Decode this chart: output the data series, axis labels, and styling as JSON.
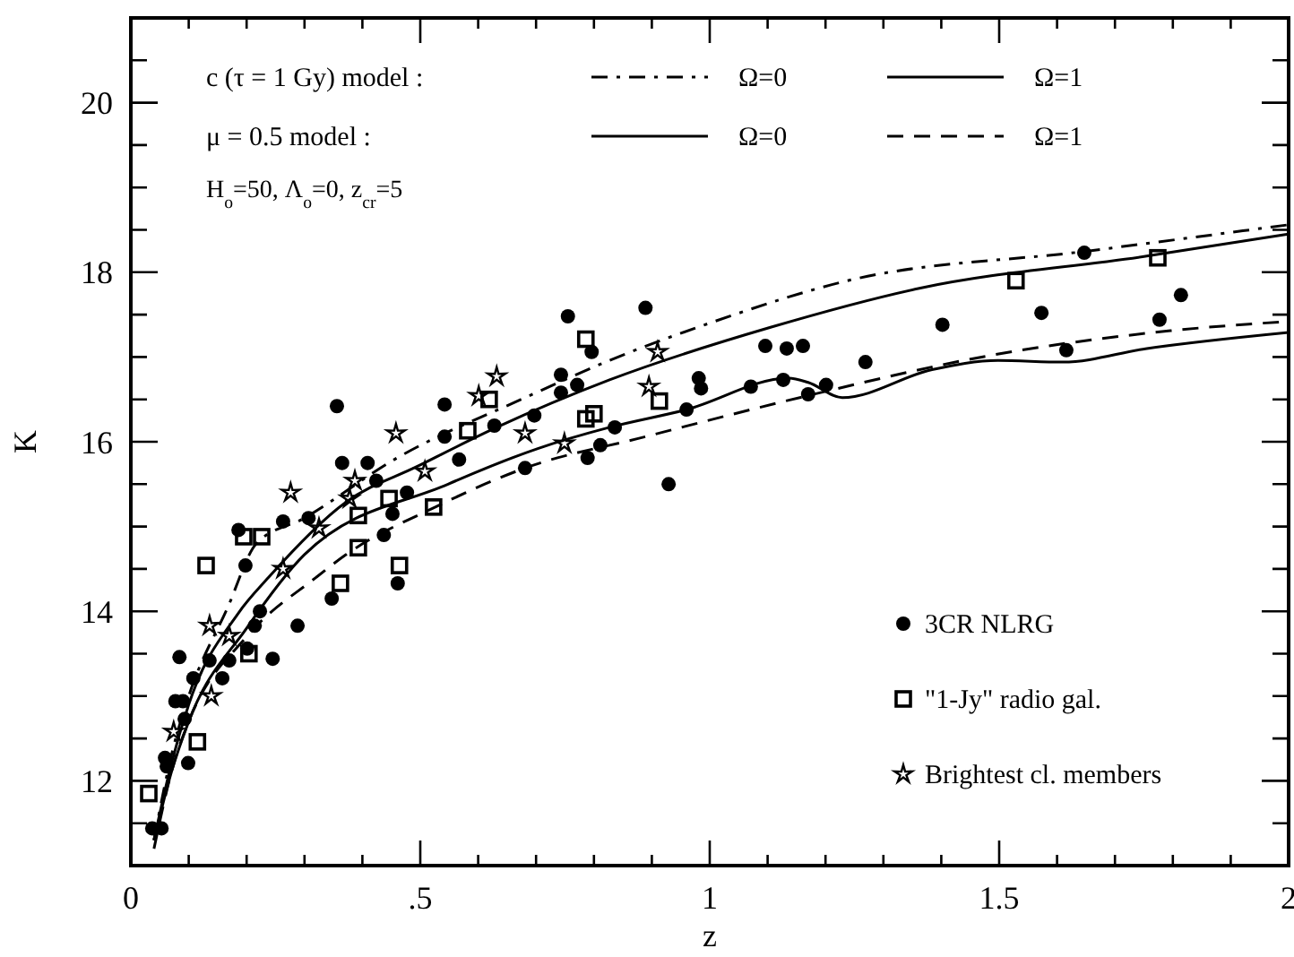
{
  "chart_data": {
    "type": "line",
    "xlabel": "z",
    "ylabel": "K",
    "xlim": [
      0,
      2
    ],
    "ylim": [
      11,
      21
    ],
    "xticks": [
      0,
      {
        "value": 0.1,
        "label": null
      },
      {
        "value": 0.2,
        "label": null
      },
      {
        "value": 0.3,
        "label": null
      },
      {
        "value": 0.4,
        "label": null
      },
      {
        "value": 0.5,
        "label": ".5"
      },
      {
        "value": 0.6,
        "label": null
      },
      {
        "value": 0.7,
        "label": null
      },
      {
        "value": 0.8,
        "label": null
      },
      {
        "value": 0.9,
        "label": null
      },
      1,
      {
        "value": 1.1,
        "label": null
      },
      {
        "value": 1.2,
        "label": null
      },
      {
        "value": 1.3,
        "label": null
      },
      {
        "value": 1.4,
        "label": null
      },
      1.5,
      {
        "value": 1.6,
        "label": null
      },
      {
        "value": 1.7,
        "label": null
      },
      {
        "value": 1.8,
        "label": null
      },
      {
        "value": 1.9,
        "label": null
      },
      2
    ],
    "yticks": [
      {
        "value": 11.5,
        "label": null
      },
      12,
      {
        "value": 12.5,
        "label": null
      },
      {
        "value": 13,
        "label": null
      },
      {
        "value": 13.5,
        "label": null
      },
      14,
      {
        "value": 14.5,
        "label": null
      },
      {
        "value": 15,
        "label": null
      },
      {
        "value": 15.5,
        "label": null
      },
      16,
      {
        "value": 16.5,
        "label": null
      },
      {
        "value": 17,
        "label": null
      },
      {
        "value": 17.5,
        "label": null
      },
      18,
      {
        "value": 18.5,
        "label": null
      },
      {
        "value": 19,
        "label": null
      },
      {
        "value": 19.5,
        "label": null
      },
      20,
      {
        "value": 20.5,
        "label": null
      }
    ],
    "annotations": [
      "c (τ = 1 Gy) model :",
      "μ = 0.5 model :",
      "H$_{o}$=50, Λ$_{o}$=0, z$_{cr}$=5"
    ],
    "legend": "top",
    "grid": false,
    "series": [
      {
        "name": "Ω=0",
        "color": "#000000",
        "line_style": "dashdot",
        "x": [
          0.04,
          0.07,
          0.1,
          0.167,
          0.217,
          0.3,
          0.455,
          0.681,
          0.827,
          1.0,
          1.238,
          1.653,
          2.0
        ],
        "values": [
          11.3,
          12.3,
          13.0,
          14.04,
          14.8,
          15.1,
          15.79,
          16.52,
          16.96,
          17.4,
          17.9,
          18.25,
          18.56
        ]
      },
      {
        "name": "Ω=1",
        "color": "#000000",
        "line_style": "solid",
        "x": [
          0.04,
          0.07,
          0.1,
          0.186,
          0.238,
          0.372,
          0.495,
          0.632,
          0.827,
          1.105,
          1.362,
          1.755,
          2.0
        ],
        "values": [
          11.3,
          12.2,
          12.9,
          13.98,
          14.4,
          15.29,
          15.71,
          16.17,
          16.73,
          17.35,
          17.81,
          18.19,
          18.45
        ]
      },
      {
        "name": "Ω=0",
        "color": "#000000",
        "line_style": "solid",
        "x": [
          0.04,
          0.07,
          0.1,
          0.2,
          0.3,
          0.548,
          0.703,
          0.827,
          0.96,
          1.136,
          1.17,
          1.229,
          1.384,
          1.498,
          1.61,
          1.755,
          2.0
        ],
        "values": [
          11.3,
          12.1,
          12.7,
          13.8,
          14.67,
          15.5,
          15.92,
          16.17,
          16.38,
          16.75,
          16.7,
          16.52,
          16.85,
          16.96,
          16.94,
          17.1,
          17.29
        ]
      },
      {
        "name": "Ω=1",
        "color": "#000000",
        "line_style": "dashed",
        "x": [
          0.04,
          0.074,
          0.1,
          0.2,
          0.32,
          0.372,
          0.526,
          0.681,
          0.889,
          1.167,
          1.486,
          1.796,
          2.0
        ],
        "values": [
          11.2,
          12.2,
          12.7,
          13.7,
          14.4,
          14.67,
          15.23,
          15.69,
          16.06,
          16.54,
          17.02,
          17.31,
          17.42
        ]
      },
      {
        "name": "3CR NLRG",
        "type": "scatter",
        "marker": "circle",
        "color": "#000000",
        "x": [
          0.889,
          1.096,
          1.133,
          1.161,
          0.981,
          0.985,
          1.071,
          1.127,
          1.17,
          1.201,
          1.269,
          0.96,
          0.836,
          0.929,
          1.402,
          1.573,
          1.647,
          1.777,
          1.814,
          1.616,
          0.755,
          0.356,
          0.542,
          0.743,
          0.743,
          0.771,
          0.796,
          0.697,
          0.628,
          0.542,
          0.567,
          0.365,
          0.409,
          0.424,
          0.477,
          0.452,
          0.263,
          0.307,
          0.186,
          0.437,
          0.681,
          0.811,
          0.789,
          0.198,
          0.084,
          0.108,
          0.136,
          0.158,
          0.17,
          0.201,
          0.245,
          0.288,
          0.214,
          0.223,
          0.077,
          0.09,
          0.093,
          0.099,
          0.059,
          0.062,
          0.037,
          0.053,
          0.347,
          0.461
        ],
        "values": [
          17.58,
          17.13,
          17.1,
          17.13,
          16.75,
          16.63,
          16.65,
          16.73,
          16.56,
          16.67,
          16.94,
          16.38,
          16.17,
          15.5,
          17.38,
          17.52,
          18.23,
          17.44,
          17.73,
          17.08,
          17.48,
          16.42,
          16.44,
          16.79,
          16.58,
          16.67,
          17.06,
          16.31,
          16.19,
          16.06,
          15.79,
          15.75,
          15.75,
          15.54,
          15.4,
          15.15,
          15.06,
          15.1,
          14.96,
          14.9,
          15.69,
          15.96,
          15.81,
          14.54,
          13.46,
          13.21,
          13.42,
          13.21,
          13.42,
          13.56,
          13.44,
          13.83,
          13.83,
          14.0,
          12.94,
          12.94,
          12.73,
          12.21,
          12.27,
          12.17,
          11.44,
          11.44,
          14.15,
          14.33
        ]
      },
      {
        "name": "\"1-Jy\" radio gal.",
        "type": "scatter",
        "marker": "square",
        "color": "#000000",
        "x": [
          1.529,
          1.774,
          0.913,
          0.786,
          0.786,
          0.8,
          0.619,
          0.582,
          0.446,
          0.523,
          0.393,
          0.393,
          0.195,
          0.226,
          0.464,
          0.13,
          0.031,
          0.115,
          0.204,
          0.362
        ],
        "values": [
          17.9,
          18.17,
          16.48,
          17.21,
          16.27,
          16.33,
          16.5,
          16.13,
          15.33,
          15.23,
          15.13,
          14.75,
          14.88,
          14.88,
          14.54,
          14.54,
          11.85,
          12.46,
          13.5,
          14.33
        ]
      },
      {
        "name": "Brightest cl. members",
        "type": "scatter",
        "marker": "star",
        "color": "#000000",
        "x": [
          0.91,
          0.895,
          0.632,
          0.458,
          0.601,
          0.681,
          0.749,
          0.508,
          0.387,
          0.378,
          0.276,
          0.325,
          0.263,
          0.139,
          0.136,
          0.17,
          0.074
        ],
        "values": [
          17.06,
          16.65,
          16.77,
          16.1,
          16.54,
          16.1,
          15.98,
          15.65,
          15.54,
          15.33,
          15.4,
          14.98,
          14.5,
          13.0,
          13.83,
          13.71,
          12.58
        ]
      }
    ]
  }
}
